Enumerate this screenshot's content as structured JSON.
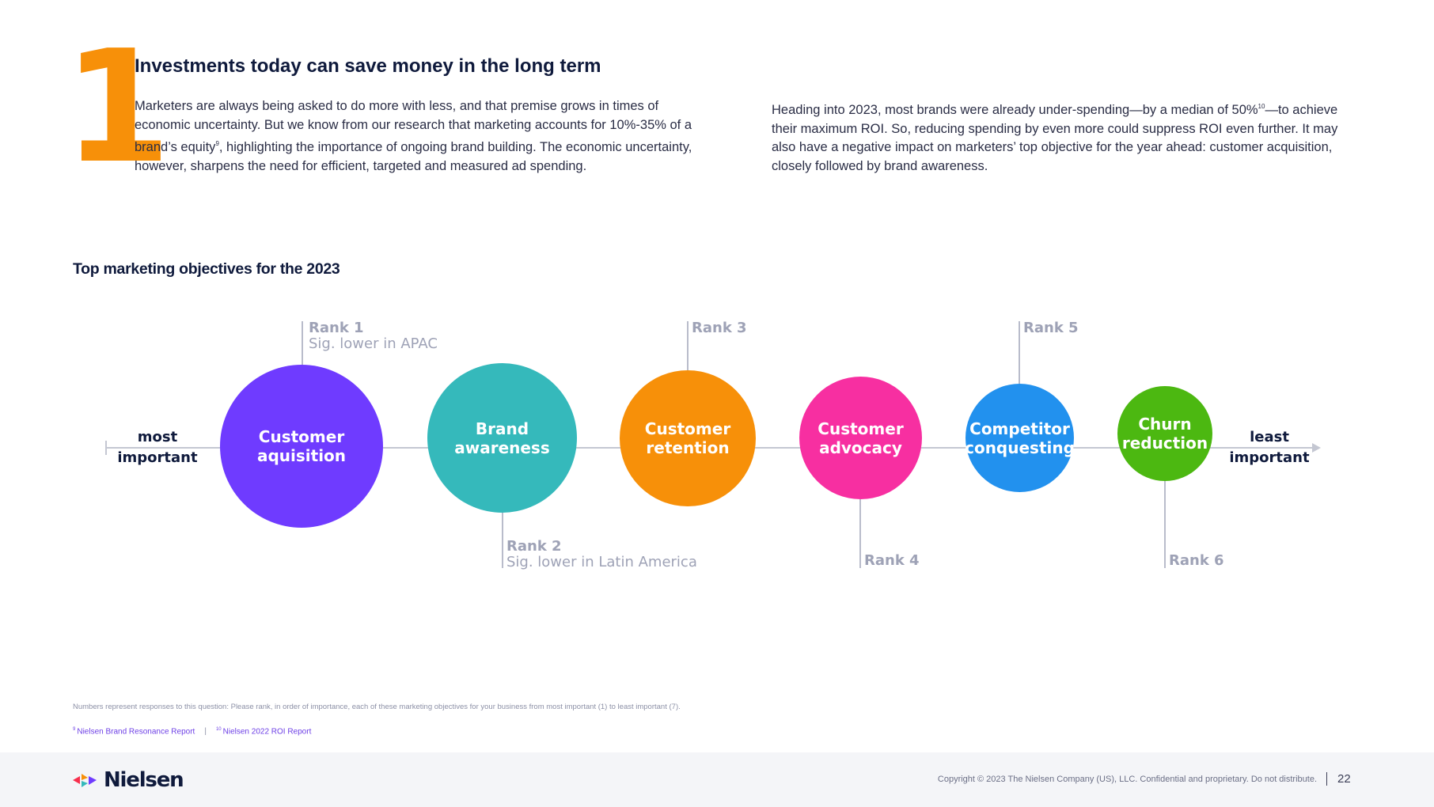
{
  "header": {
    "number": "1",
    "headline": "Investments today can save money in the long term",
    "para_left": {
      "before_sup": "Marketers are always being asked to do more with less, and that premise grows in times of economic uncertainty. But we know from our research that marketing accounts for 10%-35% of a brand’s equity",
      "sup": "9",
      "after_sup": ", highlighting the importance of ongoing brand building. The economic uncertainty, however, sharpens the need for efficient, targeted and measured ad spending."
    },
    "para_right": {
      "before_sup": "Heading into 2023, most brands were already under-spending—by a median of 50%",
      "sup": "10",
      "after_sup": "—to achieve their maximum ROI. So, reducing spending by even more could suppress ROI even further. It may also have a negative impact on marketers’ top objective for the year ahead: customer acquisition, closely followed by brand awareness."
    }
  },
  "diagram": {
    "title": "Top marketing objectives for the 2023",
    "start_label": [
      "most",
      "important"
    ],
    "end_label": [
      "least",
      "important"
    ],
    "objectives": [
      {
        "lines": [
          "Customer",
          "aquisition"
        ],
        "rank": "Rank 1",
        "note": "Sig. lower in APAC",
        "color": "#6f3bff"
      },
      {
        "lines": [
          "Brand",
          "awareness"
        ],
        "rank": "Rank 2",
        "note": "Sig. lower in Latin America",
        "color": "#35b9bb"
      },
      {
        "lines": [
          "Customer",
          "retention"
        ],
        "rank": "Rank 3",
        "note": "",
        "color": "#f79009"
      },
      {
        "lines": [
          "Customer",
          "advocacy"
        ],
        "rank": "Rank 4",
        "note": "",
        "color": "#f72fa1"
      },
      {
        "lines": [
          "Competitor",
          "conquesting"
        ],
        "rank": "Rank 5",
        "note": "",
        "color": "#2291ee"
      },
      {
        "lines": [
          "Churn",
          "reduction"
        ],
        "rank": "Rank 6",
        "note": "",
        "color": "#4cb811"
      }
    ]
  },
  "footnote": "Numbers represent responses to this question: Please rank, in order of importance, each of these marketing objectives for your business from most important (1) to least important (7).",
  "references": [
    {
      "sup": "9",
      "text": "Nielsen Brand Resonance Report"
    },
    {
      "sup": "10",
      "text": "Nielsen 2022 ROI Report"
    }
  ],
  "footer": {
    "logo_text": "Nielsen",
    "copyright": "Copyright © 2023 The Nielsen Company (US), LLC. Confidential and proprietary. Do not distribute.",
    "page_number": "22"
  },
  "colors": {
    "accent_orange": "#f79009",
    "navy": "#0f1a3c",
    "rank_gray": "#9ea2b6"
  }
}
